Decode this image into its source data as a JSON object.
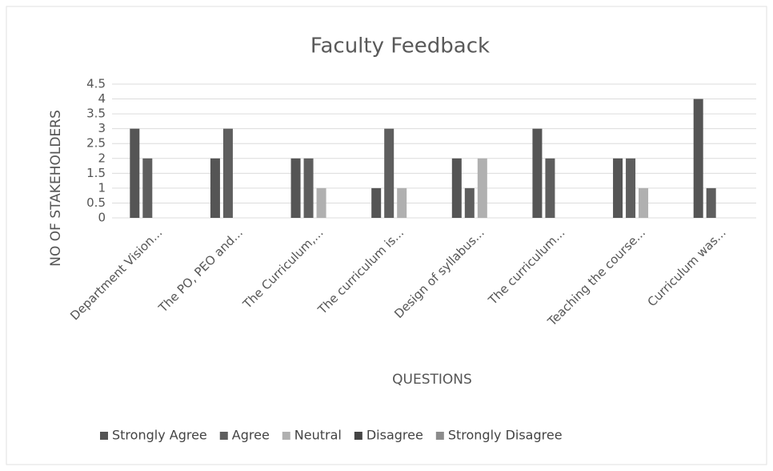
{
  "chart_data": {
    "type": "bar",
    "title": "Faculty Feedback",
    "x_label": "QUESTIONS",
    "y_label": "NO OF STAKEHOLDERS",
    "categories": [
      "Department Vision...",
      "The PO, PEO and...",
      "The Curriculum,...",
      "The curriculum is...",
      "Design of syllabus...",
      "The curriculum...",
      "Teaching the course...",
      "Curriculum was..."
    ],
    "series": [
      {
        "name": "Strongly Agree",
        "color": "#555555",
        "values": [
          3,
          2,
          2,
          1,
          2,
          3,
          2,
          4
        ]
      },
      {
        "name": "Agree",
        "color": "#5e5e5e",
        "values": [
          2,
          3,
          2,
          3,
          1,
          2,
          2,
          1
        ]
      },
      {
        "name": "Neutral",
        "color": "#b0b0b0",
        "values": [
          0,
          0,
          1,
          1,
          2,
          0,
          1,
          0
        ]
      },
      {
        "name": "Disagree",
        "color": "#444444",
        "values": [
          0,
          0,
          0,
          0,
          0,
          0,
          0,
          0
        ]
      },
      {
        "name": "Strongly Disagree",
        "color": "#8c8c8c",
        "values": [
          0,
          0,
          0,
          0,
          0,
          0,
          0,
          0
        ]
      }
    ],
    "ylim": [
      0,
      4.5
    ],
    "yticks": [
      0,
      0.5,
      1,
      1.5,
      2,
      2.5,
      3,
      3.5,
      4,
      4.5
    ],
    "grid": true,
    "legend": "bottom"
  }
}
